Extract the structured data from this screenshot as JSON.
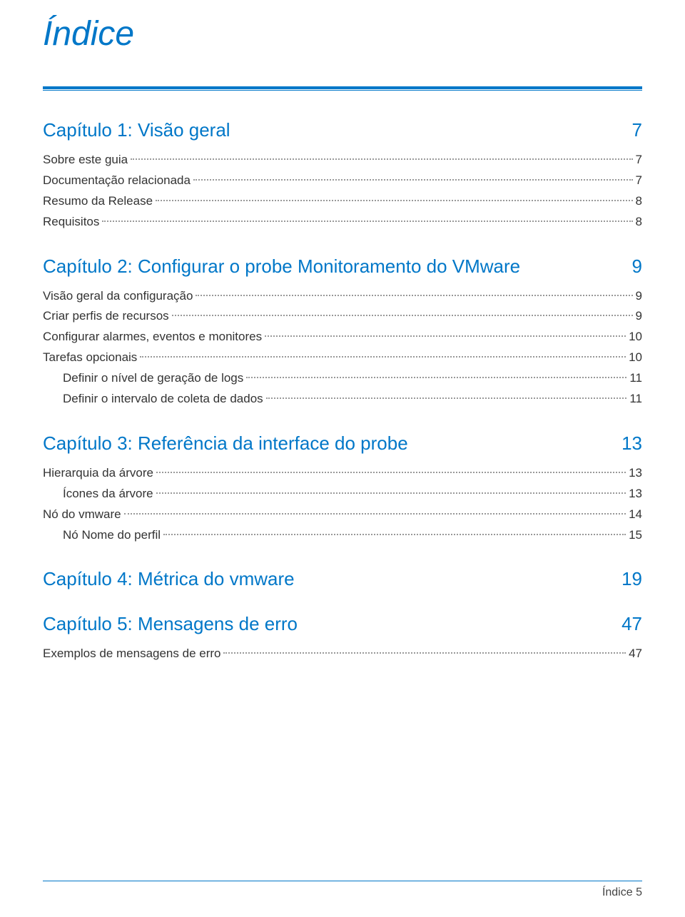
{
  "page_title": "Índice",
  "colors": {
    "brand": "#0077c8",
    "text": "#333333",
    "background": "#ffffff",
    "dot": "#999999"
  },
  "chapters": [
    {
      "title": "Capítulo 1: Visão geral",
      "page": "7",
      "entries": [
        {
          "label": "Sobre este guia",
          "page": "7",
          "indent": 0
        },
        {
          "label": "Documentação relacionada",
          "page": "7",
          "indent": 0
        },
        {
          "label": "Resumo da Release",
          "page": "8",
          "indent": 0
        },
        {
          "label": "Requisitos",
          "page": "8",
          "indent": 0
        }
      ]
    },
    {
      "title": "Capítulo 2: Configurar o probe Monitoramento do VMware",
      "page": "9",
      "entries": [
        {
          "label": "Visão geral da configuração",
          "page": "9",
          "indent": 0
        },
        {
          "label": "Criar perfis de recursos",
          "page": "9",
          "indent": 0
        },
        {
          "label": "Configurar alarmes, eventos e monitores",
          "page": "10",
          "indent": 0
        },
        {
          "label": "Tarefas opcionais",
          "page": "10",
          "indent": 0
        },
        {
          "label": "Definir o nível de geração de logs",
          "page": "11",
          "indent": 1
        },
        {
          "label": "Definir o intervalo de coleta de dados",
          "page": "11",
          "indent": 1
        }
      ]
    },
    {
      "title": "Capítulo 3: Referência da interface do probe",
      "page": "13",
      "entries": [
        {
          "label": "Hierarquia da árvore",
          "page": "13",
          "indent": 0
        },
        {
          "label": "Ícones da árvore",
          "page": "13",
          "indent": 1
        },
        {
          "label": "Nó do vmware",
          "page": "14",
          "indent": 0
        },
        {
          "label": "Nó Nome do perfil",
          "page": "15",
          "indent": 1
        }
      ]
    },
    {
      "title": "Capítulo 4: Métrica do vmware",
      "page": "19",
      "entries": []
    },
    {
      "title": "Capítulo 5: Mensagens de erro",
      "page": "47",
      "entries": [
        {
          "label": "Exemplos de mensagens de erro",
          "page": "47",
          "indent": 0
        }
      ]
    }
  ],
  "footer": {
    "label": "Índice",
    "page": "5"
  }
}
